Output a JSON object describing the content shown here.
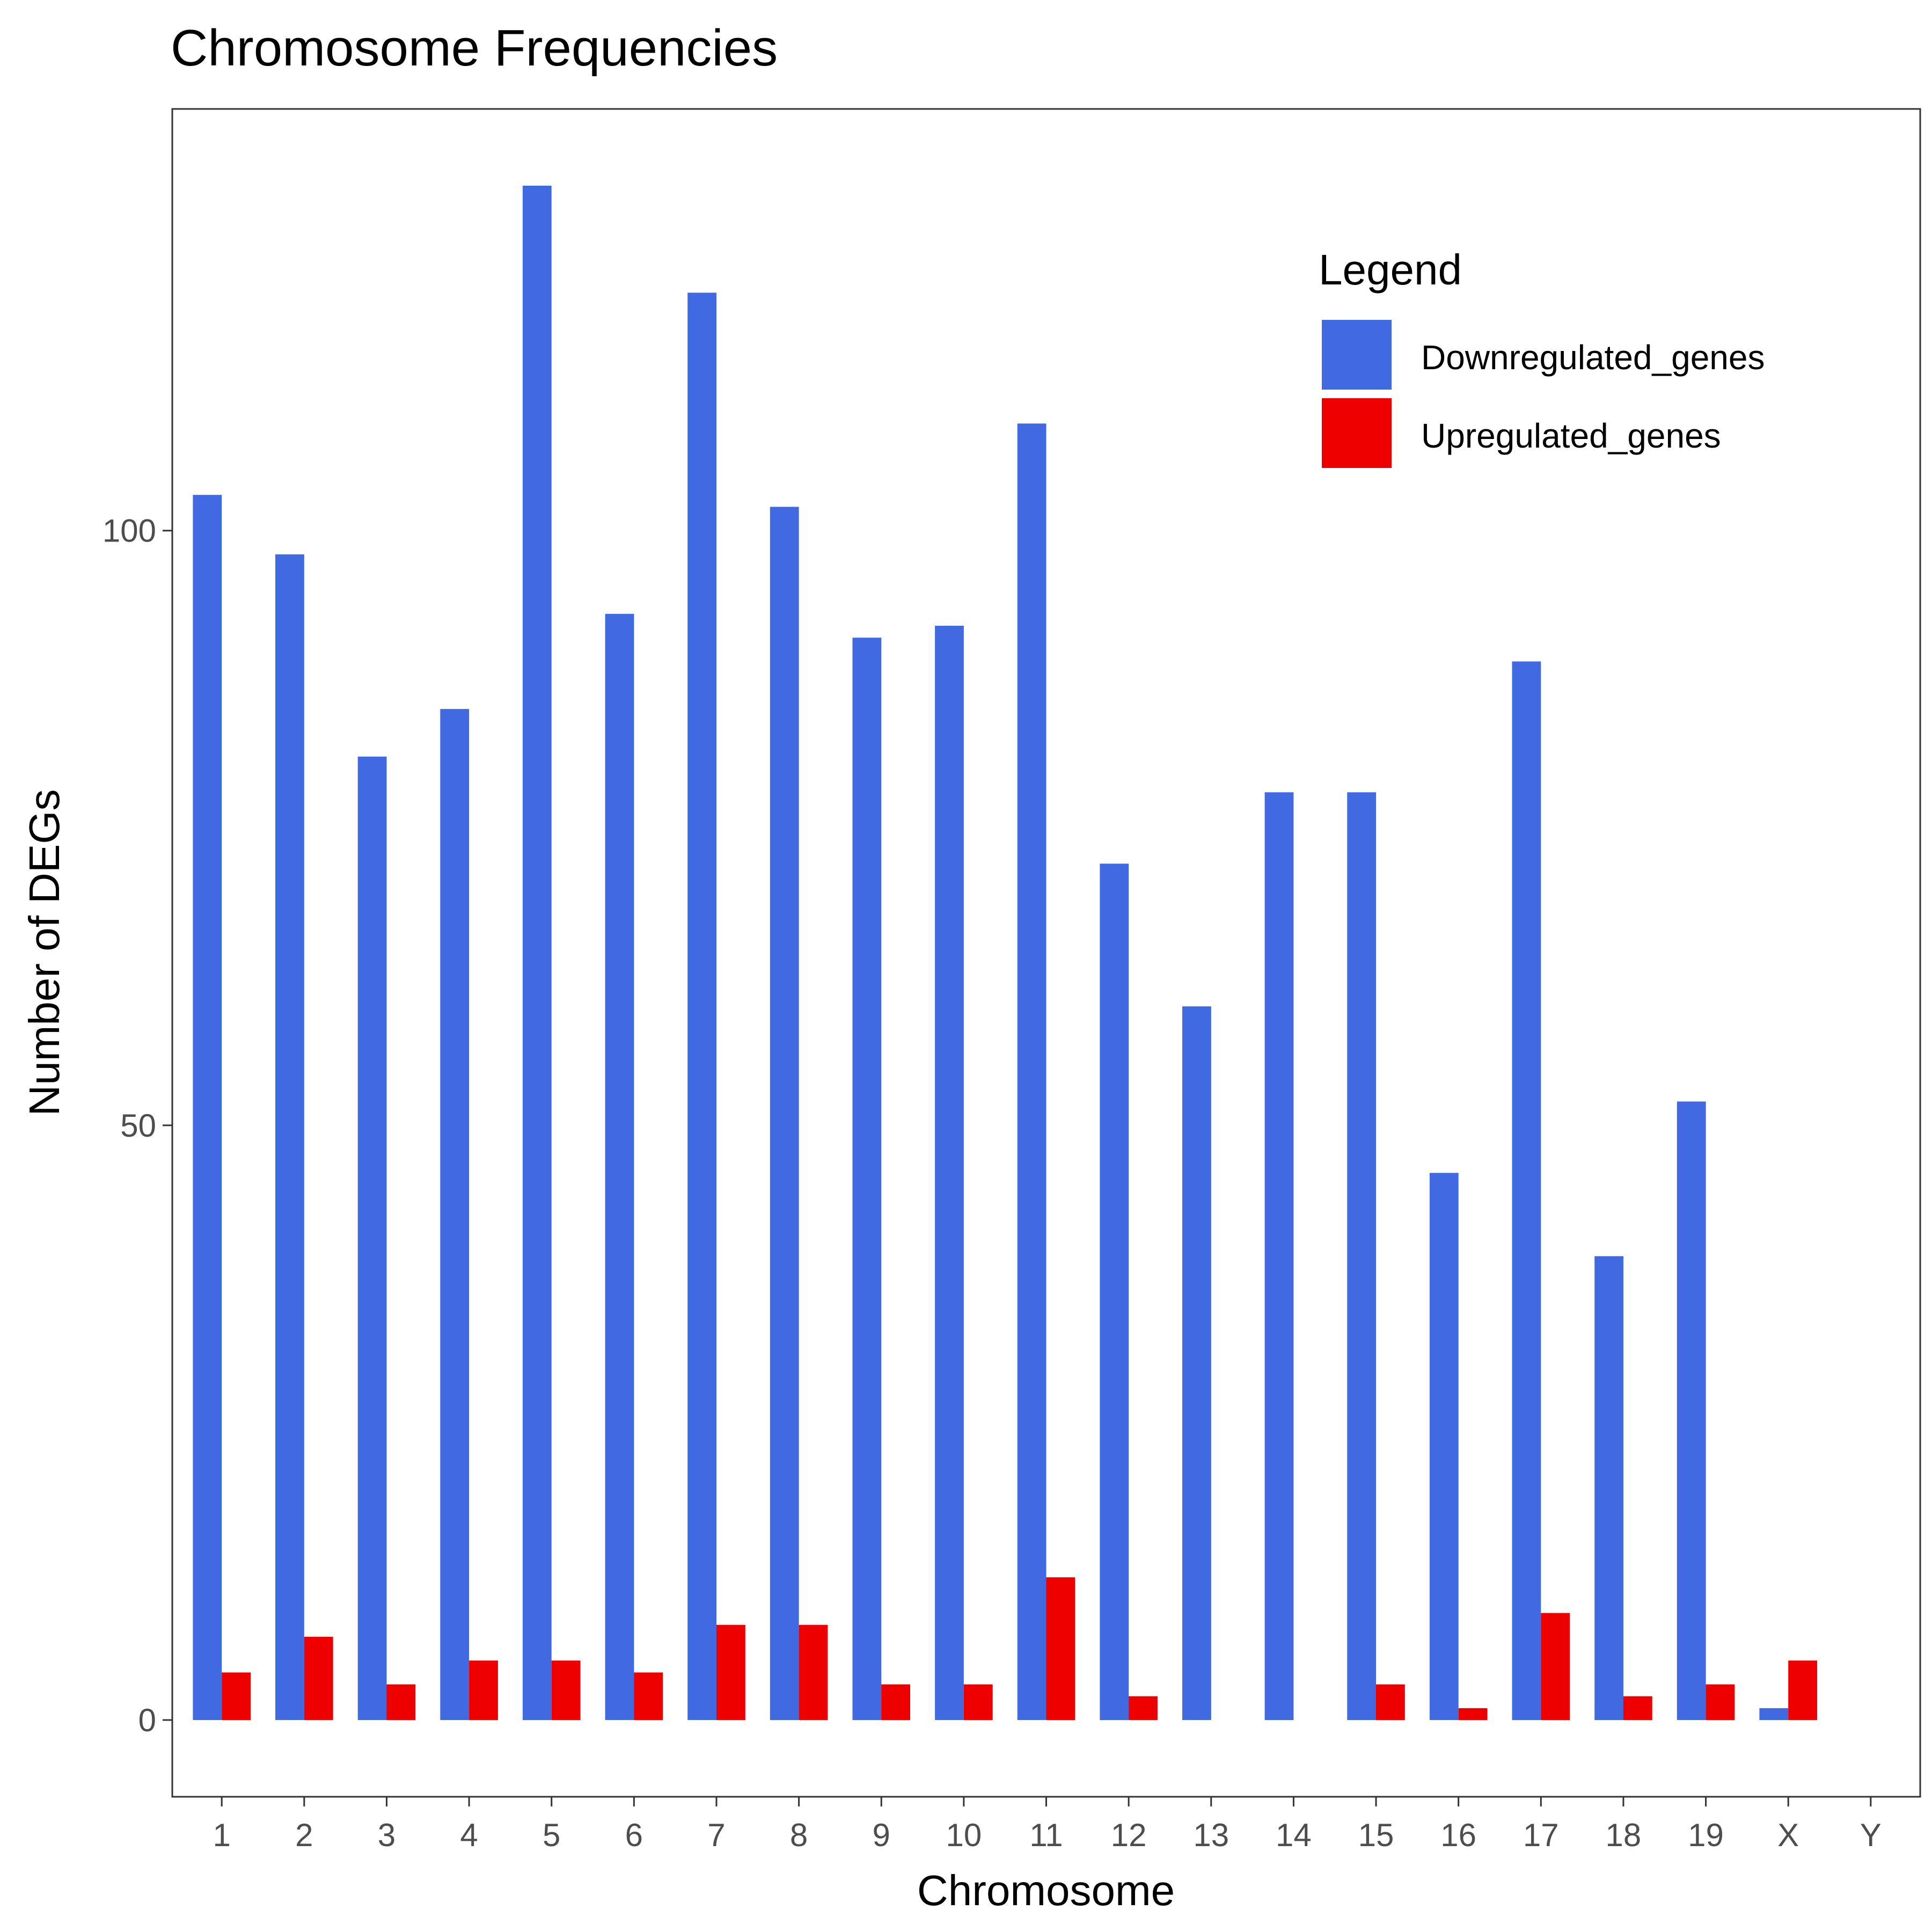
{
  "chart_data": {
    "type": "bar",
    "title": "Chromosome Frequencies",
    "xlabel": "Chromosome",
    "ylabel": "Number of DEGs",
    "categories": [
      "1",
      "2",
      "3",
      "4",
      "5",
      "6",
      "7",
      "8",
      "9",
      "10",
      "11",
      "12",
      "13",
      "14",
      "15",
      "16",
      "17",
      "18",
      "19",
      "X",
      "Y"
    ],
    "series": [
      {
        "name": "Downregulated_genes",
        "color": "#4169E1",
        "values": [
          103,
          98,
          81,
          85,
          129,
          93,
          120,
          102,
          91,
          92,
          109,
          72,
          60,
          78,
          78,
          46,
          89,
          39,
          52,
          1,
          0
        ]
      },
      {
        "name": "Upregulated_genes",
        "color": "#EE0000",
        "values": [
          4,
          7,
          3,
          5,
          5,
          4,
          8,
          8,
          3,
          3,
          12,
          2,
          0,
          0,
          3,
          1,
          9,
          2,
          3,
          5,
          0
        ]
      }
    ],
    "yticks": [
      "0",
      "50",
      "100"
    ],
    "ylim": [
      -6.45,
      135.45
    ],
    "grid": false,
    "legend": {
      "title": "Legend",
      "placement": "top-right"
    }
  }
}
